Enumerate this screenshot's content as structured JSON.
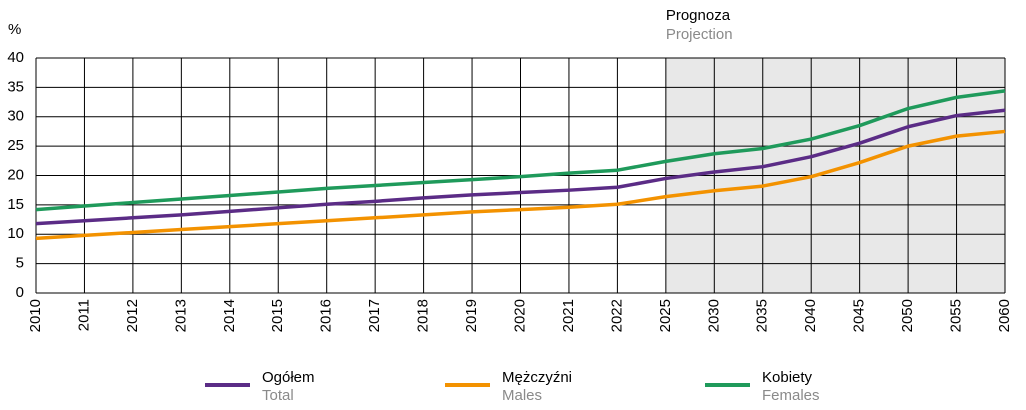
{
  "chart_data": {
    "type": "line",
    "y_label": "%",
    "projection": {
      "label": "Prognoza",
      "label_en": "Projection",
      "from": "2025",
      "color": "#e8e8e8"
    },
    "categories": [
      "2010",
      "2011",
      "2012",
      "2013",
      "2014",
      "2015",
      "2016",
      "2017",
      "2018",
      "2019",
      "2020",
      "2021",
      "2022",
      "2025",
      "2030",
      "2035",
      "2040",
      "2045",
      "2050",
      "2055",
      "2060"
    ],
    "series": [
      {
        "name": "Ogółem",
        "name_en": "Total",
        "color": "#5b2c86",
        "values": [
          11.8,
          12.3,
          12.8,
          13.3,
          13.9,
          14.5,
          15.1,
          15.6,
          16.2,
          16.7,
          17.1,
          17.5,
          18.0,
          19.5,
          20.6,
          21.5,
          23.2,
          25.5,
          28.3,
          30.2,
          31.1
        ]
      },
      {
        "name": "Mężczyźni",
        "name_en": "Males",
        "color": "#f39200",
        "values": [
          9.3,
          9.8,
          10.3,
          10.8,
          11.3,
          11.8,
          12.3,
          12.8,
          13.3,
          13.8,
          14.2,
          14.6,
          15.1,
          16.4,
          17.4,
          18.2,
          19.8,
          22.2,
          25.0,
          26.7,
          27.5
        ]
      },
      {
        "name": "Kobiety",
        "name_en": "Females",
        "color": "#1f9a5b",
        "values": [
          14.2,
          14.8,
          15.4,
          16.0,
          16.6,
          17.2,
          17.8,
          18.3,
          18.8,
          19.3,
          19.8,
          20.4,
          20.9,
          22.4,
          23.7,
          24.6,
          26.2,
          28.5,
          31.4,
          33.3,
          34.4
        ]
      }
    ],
    "ylim": [
      0,
      40
    ],
    "yticks": [
      0,
      5,
      10,
      15,
      20,
      25,
      30,
      35,
      40
    ],
    "grid": true
  }
}
